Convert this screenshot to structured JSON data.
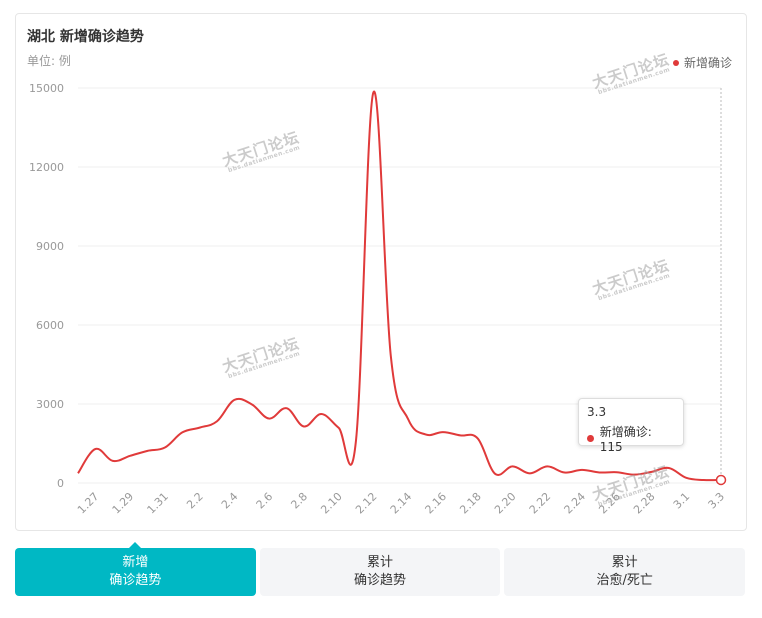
{
  "header": {
    "title": "湖北 新增确诊趋势",
    "unit": "单位: 例"
  },
  "colors": {
    "series": "#e03a3a",
    "active_tab": "#00b8c4"
  },
  "tooltip": {
    "date": "3.3",
    "label": "新增确诊: 115"
  },
  "watermark": {
    "main": "大天门论坛",
    "sub": "bbs.datianmen.com"
  },
  "tabs": [
    {
      "line1": "新增",
      "line2": "确诊趋势",
      "active": true
    },
    {
      "line1": "累计",
      "line2": "确诊趋势",
      "active": false
    },
    {
      "line1": "累计",
      "line2": "治愈/死亡",
      "active": false
    }
  ],
  "chart_data": {
    "type": "line",
    "title": "湖北 新增确诊趋势",
    "ylabel": "单位: 例",
    "xlabel": "",
    "ylim": [
      0,
      15000
    ],
    "yticks": [
      "0",
      "3000",
      "6000",
      "9000",
      "12000",
      "15000"
    ],
    "xticks": [
      "1.27",
      "1.29",
      "1.31",
      "2.2",
      "2.4",
      "2.6",
      "2.8",
      "2.10",
      "2.12",
      "2.14",
      "2.16",
      "2.18",
      "2.20",
      "2.22",
      "2.24",
      "2.26",
      "2.28",
      "3.1",
      "3.3"
    ],
    "legend_position": "top-right",
    "grid": true,
    "series": [
      {
        "name": "新增确诊",
        "x": [
          "1.26",
          "1.27",
          "1.28",
          "1.29",
          "1.30",
          "1.31",
          "2.1",
          "2.2",
          "2.3",
          "2.4",
          "2.5",
          "2.6",
          "2.7",
          "2.8",
          "2.9",
          "2.10",
          "2.11",
          "2.12",
          "2.13",
          "2.14",
          "2.15",
          "2.16",
          "2.17",
          "2.18",
          "2.19",
          "2.20",
          "2.21",
          "2.22",
          "2.23",
          "2.24",
          "2.25",
          "2.26",
          "2.27",
          "2.28",
          "2.29",
          "3.1",
          "3.2",
          "3.3"
        ],
        "values": [
          371,
          1291,
          840,
          1032,
          1220,
          1347,
          1921,
          2103,
          2345,
          3156,
          2987,
          2447,
          2841,
          2147,
          2618,
          2097,
          1638,
          14840,
          4823,
          2420,
          1843,
          1933,
          1807,
          1693,
          349,
          631,
          366,
          630,
          398,
          499,
          401,
          409,
          318,
          423,
          570,
          196,
          114,
          115
        ]
      }
    ]
  }
}
